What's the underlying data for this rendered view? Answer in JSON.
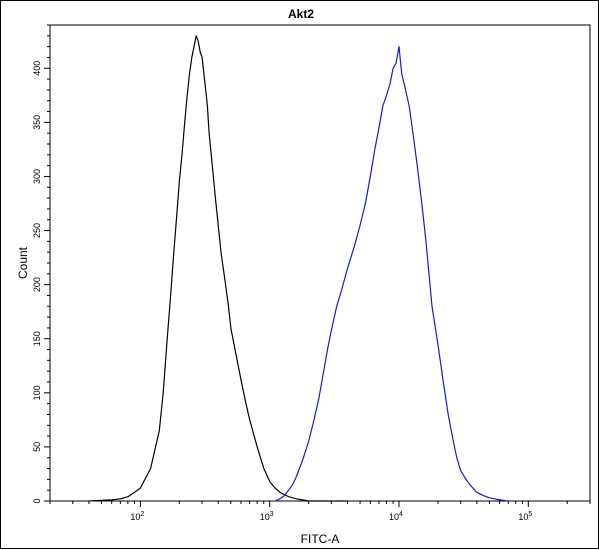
{
  "chart_data": {
    "type": "line",
    "title": "Akt2",
    "xlabel": "FITC-A",
    "ylabel": "Count",
    "x_scale": "log",
    "xlim": [
      20,
      300000
    ],
    "ylim": [
      0,
      440
    ],
    "x_ticks": [
      {
        "value": 100,
        "base": "10",
        "exp": "2"
      },
      {
        "value": 1000,
        "base": "10",
        "exp": "3"
      },
      {
        "value": 10000,
        "base": "10",
        "exp": "4"
      },
      {
        "value": 100000,
        "base": "10",
        "exp": "5"
      }
    ],
    "y_ticks": [
      0,
      50,
      100,
      150,
      200,
      250,
      300,
      350,
      400
    ],
    "grid": false,
    "legend": "none",
    "series": [
      {
        "color": "#000000",
        "x": [
          40,
          60,
          70,
          80,
          90,
          100,
          120,
          140,
          150,
          160,
          170,
          180,
          190,
          200,
          210,
          220,
          230,
          240,
          250,
          260,
          270,
          280,
          290,
          300,
          310,
          320,
          330,
          340,
          360,
          380,
          400,
          420,
          450,
          480,
          500,
          550,
          600,
          650,
          700,
          800,
          900,
          1000,
          1100,
          1200,
          1400,
          1600,
          1800,
          2000,
          2500,
          3000,
          4000
        ],
        "y": [
          0,
          1,
          2,
          4,
          8,
          12,
          30,
          65,
          100,
          145,
          185,
          225,
          260,
          295,
          320,
          350,
          375,
          395,
          410,
          420,
          430,
          425,
          415,
          410,
          395,
          380,
          365,
          340,
          310,
          280,
          255,
          230,
          205,
          180,
          160,
          135,
          112,
          92,
          75,
          50,
          30,
          18,
          12,
          8,
          4,
          2,
          1,
          0,
          0,
          0,
          0
        ]
      },
      {
        "color": "#1a1acc",
        "x": [
          1100,
          1200,
          1300,
          1400,
          1500,
          1600,
          1800,
          2000,
          2200,
          2400,
          2600,
          2800,
          3000,
          3300,
          3600,
          4000,
          4500,
          5000,
          5500,
          6000,
          6500,
          7000,
          7500,
          8000,
          8500,
          9000,
          9500,
          10000,
          10500,
          11000,
          12000,
          13000,
          14000,
          15000,
          16000,
          17000,
          18000,
          20000,
          22000,
          24000,
          26000,
          28000,
          30000,
          33000,
          36000,
          40000,
          45000,
          50000,
          55000,
          60000,
          70000
        ],
        "y": [
          0,
          2,
          5,
          10,
          15,
          22,
          38,
          55,
          75,
          95,
          118,
          140,
          158,
          180,
          195,
          215,
          235,
          255,
          275,
          300,
          325,
          345,
          365,
          375,
          385,
          400,
          405,
          420,
          395,
          385,
          365,
          335,
          305,
          275,
          245,
          212,
          180,
          145,
          110,
          80,
          58,
          40,
          28,
          20,
          14,
          8,
          5,
          3,
          2,
          1,
          0
        ]
      }
    ]
  }
}
